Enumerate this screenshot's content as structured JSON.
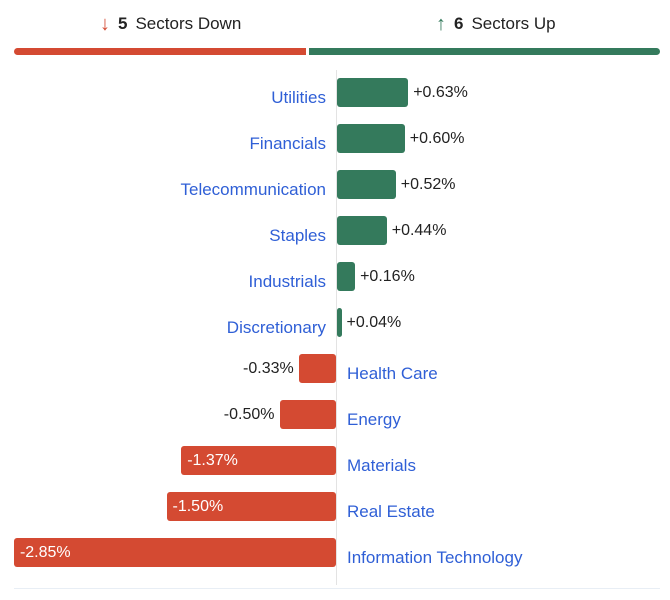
{
  "header": {
    "down_count": "5",
    "down_label": "Sectors Down",
    "up_count": "6",
    "up_label": "Sectors Up"
  },
  "colors": {
    "up": "#347a5c",
    "down": "#d44a32",
    "label": "#2f5fd6"
  },
  "chart_data": {
    "type": "bar",
    "orientation": "horizontal",
    "categories": [
      "Utilities",
      "Financials",
      "Telecommunication",
      "Staples",
      "Industrials",
      "Discretionary",
      "Health Care",
      "Energy",
      "Materials",
      "Real Estate",
      "Information Technology"
    ],
    "values": [
      0.63,
      0.6,
      0.52,
      0.44,
      0.16,
      0.04,
      -0.33,
      -0.5,
      -1.37,
      -1.5,
      -2.85
    ],
    "value_labels": [
      "+0.63%",
      "+0.60%",
      "+0.52%",
      "+0.44%",
      "+0.16%",
      "+0.04%",
      "-0.33%",
      "-0.50%",
      "-1.37%",
      "-1.50%",
      "-2.85%"
    ],
    "xlim": [
      -2.85,
      2.85
    ],
    "unit": "%"
  }
}
